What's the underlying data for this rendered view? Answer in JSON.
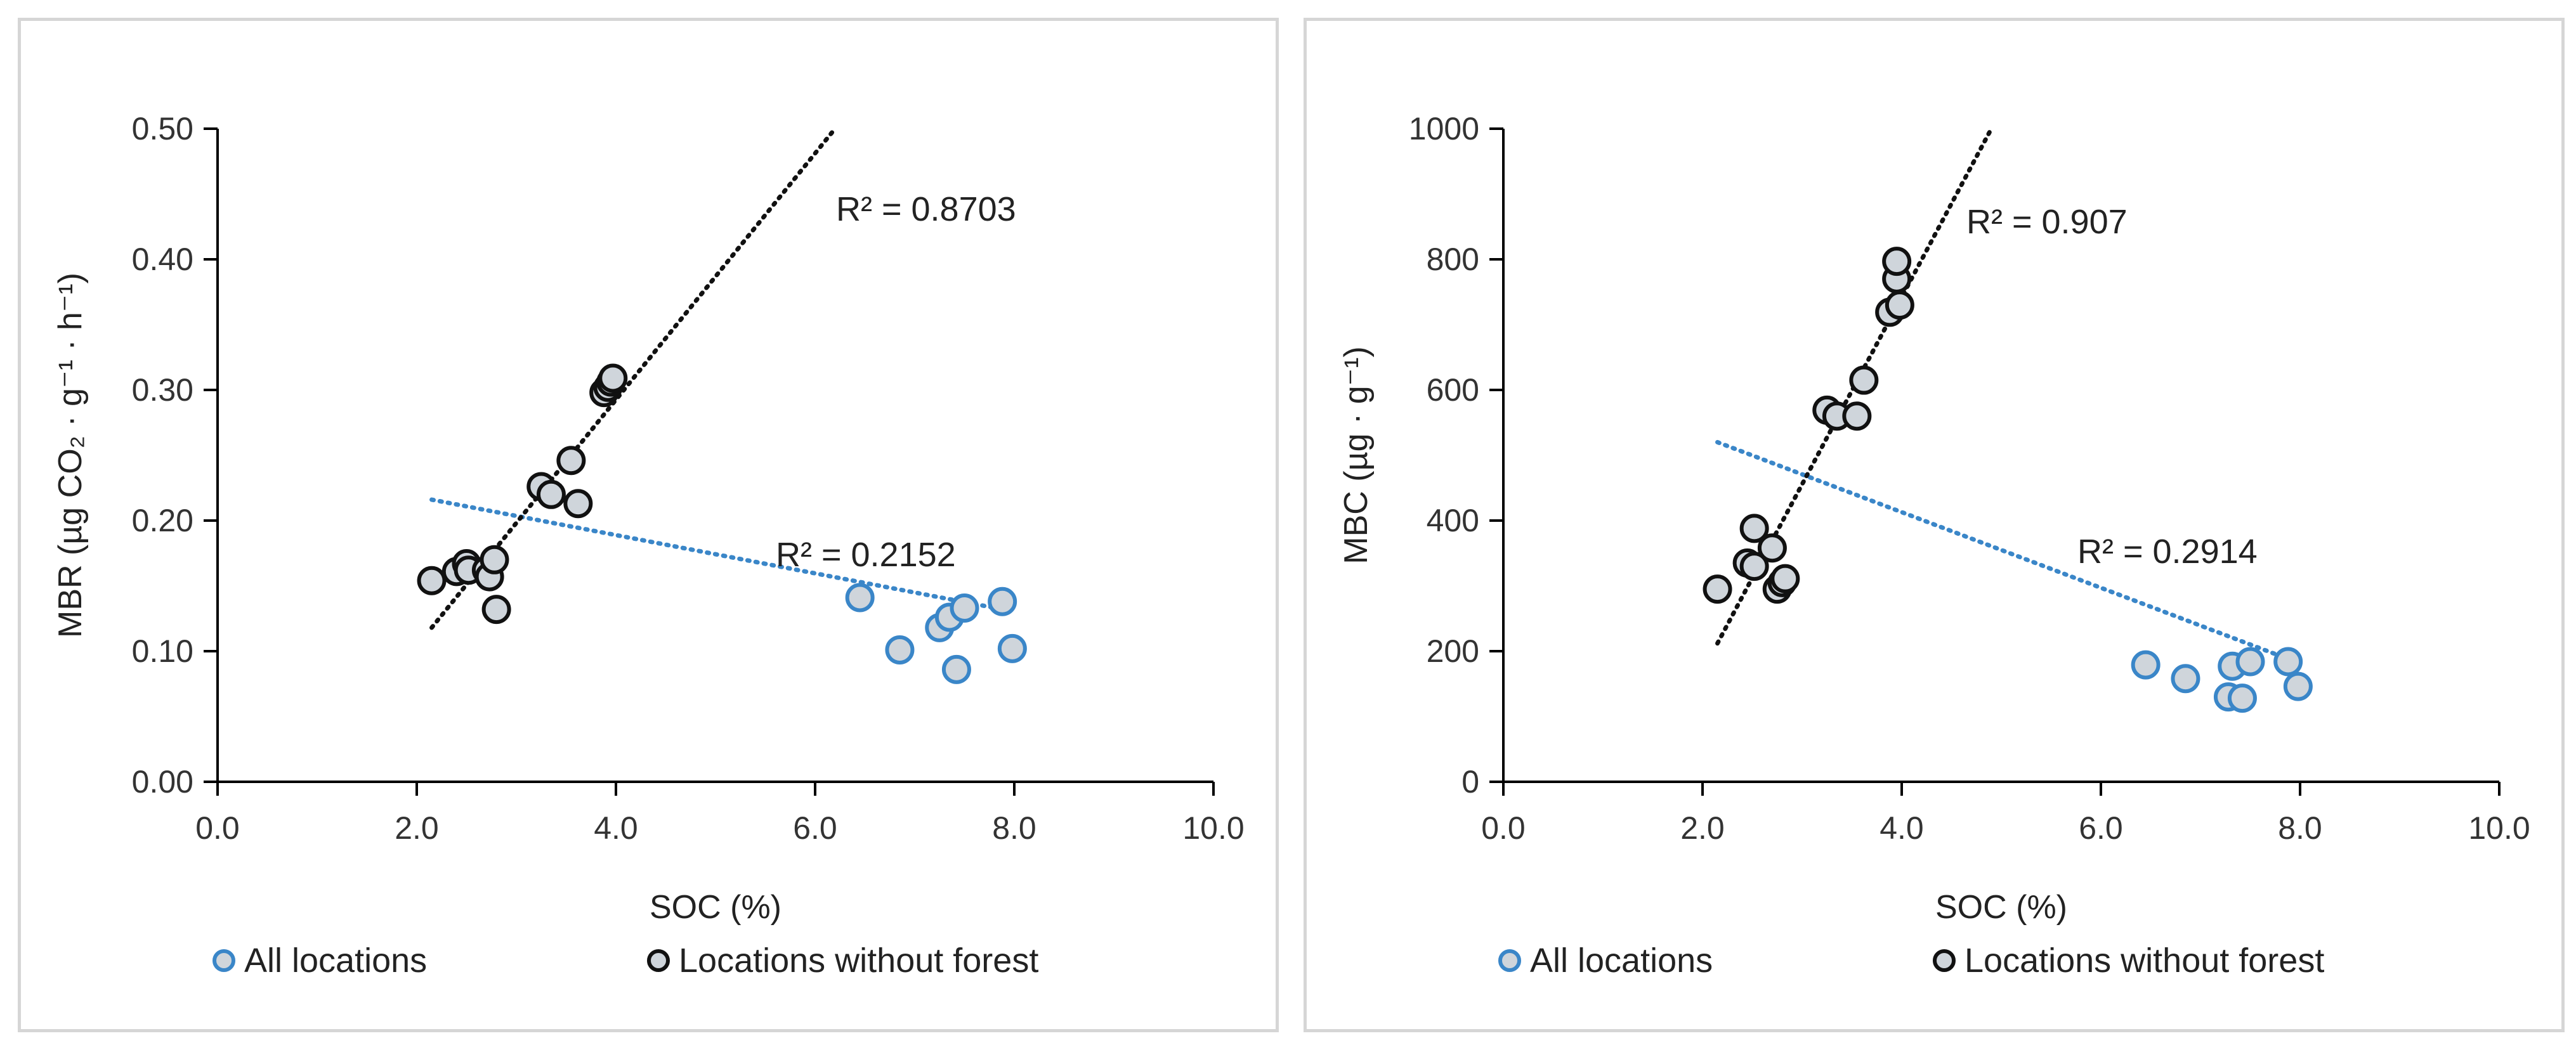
{
  "chart_data": [
    {
      "type": "scatter",
      "xlabel": "SOC (%)",
      "ylabel": "MBR (µg CO₂ · g⁻¹ · h⁻¹)",
      "xlim": [
        0,
        10
      ],
      "ylim": [
        0,
        0.5
      ],
      "x_ticks": [
        "0.0",
        "2.0",
        "4.0",
        "6.0",
        "8.0",
        "10.0"
      ],
      "y_ticks": [
        "0.00",
        "0.10",
        "0.20",
        "0.30",
        "0.40",
        "0.50"
      ],
      "legend_placement": "bottom",
      "series": [
        {
          "name": "All locations",
          "color": "#3a86c8",
          "marker_fill": "#cfd5db",
          "points": [
            [
              6.45,
              0.141
            ],
            [
              6.85,
              0.101
            ],
            [
              7.25,
              0.118
            ],
            [
              7.35,
              0.126
            ],
            [
              7.42,
              0.086
            ],
            [
              7.5,
              0.133
            ],
            [
              7.88,
              0.138
            ],
            [
              7.98,
              0.102
            ]
          ],
          "trendline": {
            "x": [
              2.15,
              7.95
            ],
            "y": [
              0.216,
              0.131
            ],
            "r2_label": "R² = 0.2152"
          }
        },
        {
          "name": "Locations without forest",
          "color": "#111111",
          "marker_fill": "#cfd5db",
          "points": [
            [
              2.15,
              0.154
            ],
            [
              2.4,
              0.161
            ],
            [
              2.5,
              0.167
            ],
            [
              2.52,
              0.162
            ],
            [
              2.7,
              0.162
            ],
            [
              2.73,
              0.157
            ],
            [
              2.78,
              0.17
            ],
            [
              2.8,
              0.132
            ],
            [
              3.25,
              0.226
            ],
            [
              3.35,
              0.22
            ],
            [
              3.55,
              0.246
            ],
            [
              3.62,
              0.213
            ],
            [
              3.88,
              0.298
            ],
            [
              3.92,
              0.302
            ],
            [
              3.95,
              0.306
            ],
            [
              3.97,
              0.309
            ]
          ],
          "trendline": {
            "x": [
              2.15,
              6.2
            ],
            "y": [
              0.118,
              0.5
            ],
            "r2_label": "R² = 0.8703"
          }
        }
      ]
    },
    {
      "type": "scatter",
      "xlabel": "SOC (%)",
      "ylabel": "MBC (µg · g⁻¹)",
      "xlim": [
        0,
        10
      ],
      "ylim": [
        0,
        1000
      ],
      "x_ticks": [
        "0.0",
        "2.0",
        "4.0",
        "6.0",
        "8.0",
        "10.0"
      ],
      "y_ticks": [
        "0",
        "200",
        "400",
        "600",
        "800",
        "1000"
      ],
      "legend_placement": "bottom",
      "series": [
        {
          "name": "All locations",
          "color": "#3a86c8",
          "marker_fill": "#cfd5db",
          "points": [
            [
              6.45,
              179
            ],
            [
              6.85,
              158
            ],
            [
              7.28,
              130
            ],
            [
              7.32,
              177
            ],
            [
              7.42,
              128
            ],
            [
              7.5,
              184
            ],
            [
              7.88,
              184
            ],
            [
              7.98,
              146
            ]
          ],
          "trendline": {
            "x": [
              2.15,
              7.9
            ],
            "y": [
              520,
              187
            ],
            "r2_label": "R² = 0.2914"
          }
        },
        {
          "name": "Locations without forest",
          "color": "#111111",
          "marker_fill": "#cfd5db",
          "points": [
            [
              2.15,
              295
            ],
            [
              2.45,
              335
            ],
            [
              2.52,
              330
            ],
            [
              2.52,
              388
            ],
            [
              2.7,
              358
            ],
            [
              2.75,
              295
            ],
            [
              2.8,
              305
            ],
            [
              2.83,
              311
            ],
            [
              3.25,
              569
            ],
            [
              3.35,
              560
            ],
            [
              3.55,
              560
            ],
            [
              3.62,
              615
            ],
            [
              3.88,
              719
            ],
            [
              3.95,
              770
            ],
            [
              3.95,
              797
            ],
            [
              3.98,
              730
            ]
          ],
          "trendline": {
            "x": [
              2.15,
              4.9
            ],
            "y": [
              212,
              1000
            ],
            "r2_label": "R² = 0.907"
          }
        }
      ]
    }
  ]
}
